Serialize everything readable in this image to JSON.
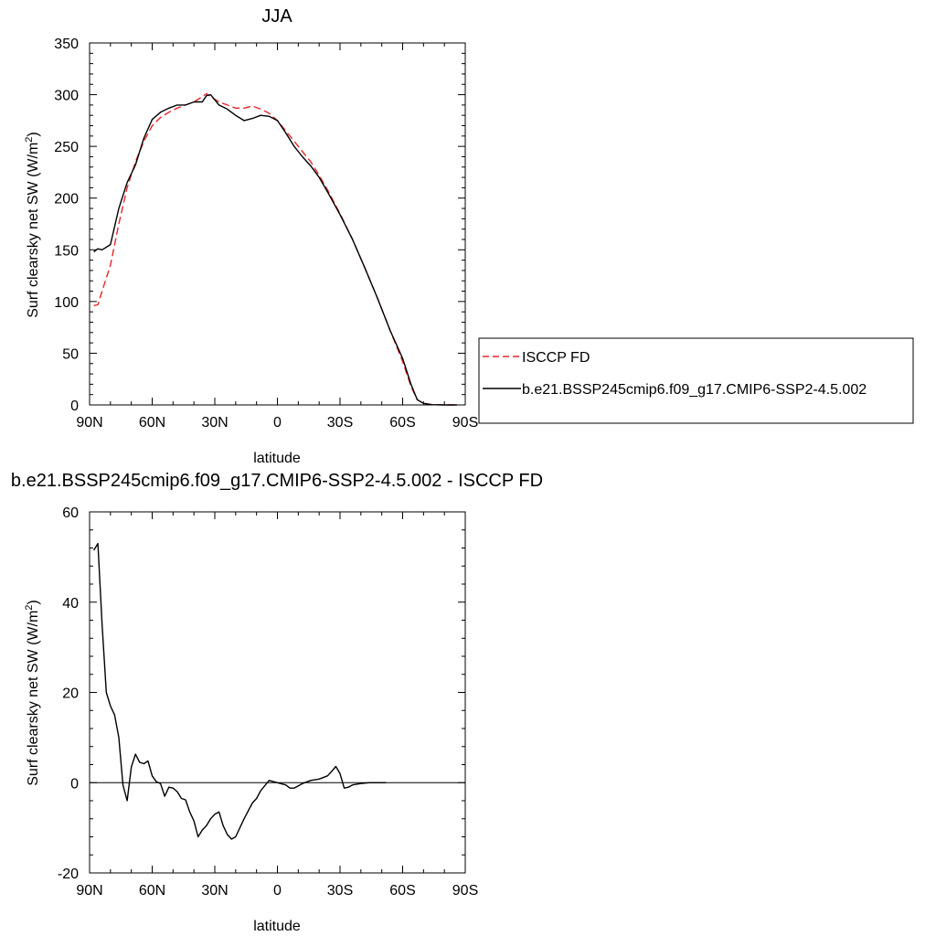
{
  "chart_data": [
    {
      "type": "line",
      "title": "JJA",
      "xlabel": "latitude",
      "ylabel": "Surf clearsky net SW",
      "yunit_prefix": "(W/m",
      "yunit_sup": "2",
      "yunit_suffix": ")",
      "xlim": [
        90,
        -90
      ],
      "ylim": [
        0,
        350
      ],
      "xticks": [
        {
          "value": 90,
          "label": "90N"
        },
        {
          "value": 60,
          "label": "60N"
        },
        {
          "value": 30,
          "label": "30N"
        },
        {
          "value": 0,
          "label": "0"
        },
        {
          "value": -30,
          "label": "30S"
        },
        {
          "value": -60,
          "label": "60S"
        },
        {
          "value": -90,
          "label": "90S"
        }
      ],
      "yticks": [
        0,
        50,
        100,
        150,
        200,
        250,
        300,
        350
      ],
      "grid": false,
      "legend": "outside-right",
      "series": [
        {
          "name": "ISCCP FD",
          "color": "#e8262b",
          "dash": true,
          "points": [
            [
              88,
              96
            ],
            [
              86,
              97
            ],
            [
              84,
              110
            ],
            [
              80,
              135
            ],
            [
              76,
              175
            ],
            [
              72,
              210
            ],
            [
              68,
              235
            ],
            [
              64,
              255
            ],
            [
              60,
              270
            ],
            [
              56,
              278
            ],
            [
              52,
              283
            ],
            [
              48,
              287
            ],
            [
              44,
              290
            ],
            [
              40,
              293
            ],
            [
              36,
              298
            ],
            [
              34,
              301
            ],
            [
              32,
              298
            ],
            [
              28,
              293
            ],
            [
              24,
              290
            ],
            [
              20,
              287
            ],
            [
              16,
              287
            ],
            [
              12,
              289
            ],
            [
              8,
              286
            ],
            [
              4,
              282
            ],
            [
              0,
              275
            ],
            [
              -4,
              265
            ],
            [
              -8,
              255
            ],
            [
              -12,
              245
            ],
            [
              -16,
              235
            ],
            [
              -20,
              222
            ],
            [
              -24,
              208
            ],
            [
              -30,
              185
            ],
            [
              -36,
              160
            ],
            [
              -42,
              132
            ],
            [
              -48,
              103
            ],
            [
              -54,
              72
            ],
            [
              -60,
              42
            ],
            [
              -64,
              18
            ],
            [
              -67,
              5
            ],
            [
              -70,
              1.5
            ],
            [
              -74,
              0.3
            ],
            [
              -80,
              0
            ],
            [
              -86,
              0
            ]
          ]
        },
        {
          "name": "b.e21.BSSP245cmip6.f09_g17.CMIP6-SSP2-4.5.002",
          "color": "#000000",
          "dash": false,
          "points": [
            [
              88,
              148
            ],
            [
              86,
              151
            ],
            [
              84,
              150
            ],
            [
              80,
              155
            ],
            [
              76,
              190
            ],
            [
              72,
              215
            ],
            [
              68,
              232
            ],
            [
              64,
              258
            ],
            [
              60,
              276
            ],
            [
              56,
              283
            ],
            [
              52,
              287
            ],
            [
              48,
              290
            ],
            [
              44,
              290
            ],
            [
              40,
              293
            ],
            [
              36,
              293
            ],
            [
              34,
              299
            ],
            [
              32,
              300
            ],
            [
              28,
              290
            ],
            [
              24,
              286
            ],
            [
              20,
              280
            ],
            [
              16,
              275
            ],
            [
              12,
              277
            ],
            [
              8,
              280
            ],
            [
              4,
              279
            ],
            [
              0,
              275
            ],
            [
              -4,
              263
            ],
            [
              -8,
              250
            ],
            [
              -12,
              240
            ],
            [
              -16,
              231
            ],
            [
              -20,
              220
            ],
            [
              -24,
              206
            ],
            [
              -30,
              184
            ],
            [
              -36,
              160
            ],
            [
              -42,
              132
            ],
            [
              -48,
              103
            ],
            [
              -54,
              72
            ],
            [
              -60,
              45
            ],
            [
              -64,
              20
            ],
            [
              -67,
              5
            ],
            [
              -70,
              1.5
            ],
            [
              -74,
              0.3
            ],
            [
              -80,
              0
            ],
            [
              -86,
              0
            ]
          ]
        }
      ]
    },
    {
      "type": "line",
      "title": "b.e21.BSSP245cmip6.f09_g17.CMIP6-SSP2-4.5.002 - ISCCP FD",
      "xlabel": "latitude",
      "ylabel": "Surf clearsky net SW",
      "yunit_prefix": "(W/m",
      "yunit_sup": "2",
      "yunit_suffix": ")",
      "xlim": [
        90,
        -90
      ],
      "ylim": [
        -20,
        60
      ],
      "xticks": [
        {
          "value": 90,
          "label": "90N"
        },
        {
          "value": 60,
          "label": "60N"
        },
        {
          "value": 30,
          "label": "30N"
        },
        {
          "value": 0,
          "label": "0"
        },
        {
          "value": -30,
          "label": "30S"
        },
        {
          "value": -60,
          "label": "60S"
        },
        {
          "value": -90,
          "label": "90S"
        }
      ],
      "yticks": [
        -20,
        0,
        20,
        40,
        60
      ],
      "grid": false,
      "series": [
        {
          "color": "#000000",
          "dash": false,
          "points": [
            [
              88,
              51.5
            ],
            [
              86,
              53
            ],
            [
              84,
              35
            ],
            [
              82,
              20
            ],
            [
              80,
              17
            ],
            [
              78,
              15
            ],
            [
              76,
              10
            ],
            [
              74,
              -0.5
            ],
            [
              72,
              -4
            ],
            [
              70,
              3.5
            ],
            [
              68,
              6.3
            ],
            [
              66,
              4.5
            ],
            [
              64,
              4.2
            ],
            [
              62,
              4.8
            ],
            [
              60,
              1.5
            ],
            [
              58,
              0.2
            ],
            [
              56,
              -0.2
            ],
            [
              54,
              -3
            ],
            [
              52,
              -1
            ],
            [
              50,
              -1.2
            ],
            [
              48,
              -2
            ],
            [
              46,
              -3.5
            ],
            [
              44,
              -3.8
            ],
            [
              42,
              -6.5
            ],
            [
              40,
              -8.5
            ],
            [
              38,
              -12
            ],
            [
              36,
              -10.5
            ],
            [
              34,
              -9.5
            ],
            [
              32,
              -8
            ],
            [
              30,
              -7
            ],
            [
              28,
              -6.5
            ],
            [
              26,
              -9.5
            ],
            [
              24,
              -11.5
            ],
            [
              22,
              -12.5
            ],
            [
              20,
              -12
            ],
            [
              16,
              -8
            ],
            [
              12,
              -4.5
            ],
            [
              10,
              -3.5
            ],
            [
              8,
              -1.8
            ],
            [
              4,
              0.5
            ],
            [
              0,
              0
            ],
            [
              -4,
              -0.5
            ],
            [
              -6,
              -1.2
            ],
            [
              -8,
              -1.2
            ],
            [
              -12,
              -0.2
            ],
            [
              -16,
              0.5
            ],
            [
              -20,
              0.8
            ],
            [
              -24,
              1.5
            ],
            [
              -26,
              2.5
            ],
            [
              -28,
              3.6
            ],
            [
              -30,
              2
            ],
            [
              -32,
              -1.2
            ],
            [
              -34,
              -1
            ],
            [
              -36,
              -0.5
            ],
            [
              -40,
              -0.2
            ],
            [
              -44,
              0
            ],
            [
              -48,
              0
            ],
            [
              -52,
              0
            ]
          ]
        }
      ]
    }
  ]
}
